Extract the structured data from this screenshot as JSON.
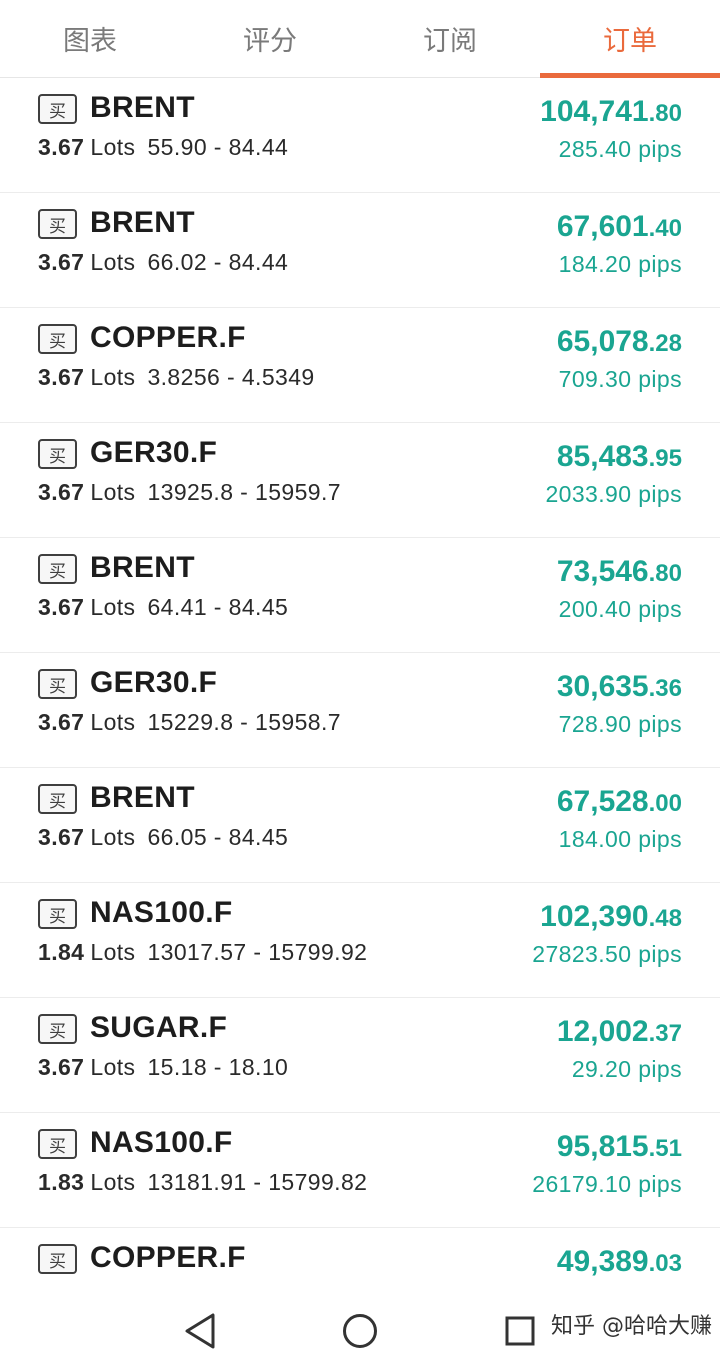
{
  "tabs": [
    {
      "label": "图表",
      "active": false
    },
    {
      "label": "评分",
      "active": false
    },
    {
      "label": "订阅",
      "active": false
    },
    {
      "label": "订单",
      "active": true
    }
  ],
  "colors": {
    "accent": "#ea6a3c",
    "profit": "#1aa591",
    "text": "#1d1d1d"
  },
  "orders": [
    {
      "side": "买",
      "symbol": "BRENT",
      "lots": "3.67",
      "lots_word": "Lots",
      "range": "55.90 - 84.44",
      "profit_int": "104,741",
      "profit_dec": ".80",
      "pips": "285.40 pips"
    },
    {
      "side": "买",
      "symbol": "BRENT",
      "lots": "3.67",
      "lots_word": "Lots",
      "range": "66.02 - 84.44",
      "profit_int": "67,601",
      "profit_dec": ".40",
      "pips": "184.20 pips"
    },
    {
      "side": "买",
      "symbol": "COPPER.F",
      "lots": "3.67",
      "lots_word": "Lots",
      "range": "3.8256 - 4.5349",
      "profit_int": "65,078",
      "profit_dec": ".28",
      "pips": "709.30 pips"
    },
    {
      "side": "买",
      "symbol": "GER30.F",
      "lots": "3.67",
      "lots_word": "Lots",
      "range": "13925.8 - 15959.7",
      "profit_int": "85,483",
      "profit_dec": ".95",
      "pips": "2033.90 pips"
    },
    {
      "side": "买",
      "symbol": "BRENT",
      "lots": "3.67",
      "lots_word": "Lots",
      "range": "64.41 - 84.45",
      "profit_int": "73,546",
      "profit_dec": ".80",
      "pips": "200.40 pips"
    },
    {
      "side": "买",
      "symbol": "GER30.F",
      "lots": "3.67",
      "lots_word": "Lots",
      "range": "15229.8 - 15958.7",
      "profit_int": "30,635",
      "profit_dec": ".36",
      "pips": "728.90 pips"
    },
    {
      "side": "买",
      "symbol": "BRENT",
      "lots": "3.67",
      "lots_word": "Lots",
      "range": "66.05 - 84.45",
      "profit_int": "67,528",
      "profit_dec": ".00",
      "pips": "184.00 pips"
    },
    {
      "side": "买",
      "symbol": "NAS100.F",
      "lots": "1.84",
      "lots_word": "Lots",
      "range": "13017.57 - 15799.92",
      "profit_int": "102,390",
      "profit_dec": ".48",
      "pips": "27823.50 pips"
    },
    {
      "side": "买",
      "symbol": "SUGAR.F",
      "lots": "3.67",
      "lots_word": "Lots",
      "range": "15.18 - 18.10",
      "profit_int": "12,002",
      "profit_dec": ".37",
      "pips": "29.20 pips"
    },
    {
      "side": "买",
      "symbol": "NAS100.F",
      "lots": "1.83",
      "lots_word": "Lots",
      "range": "13181.91 - 15799.82",
      "profit_int": "95,815",
      "profit_dec": ".51",
      "pips": "26179.10 pips"
    },
    {
      "side": "买",
      "symbol": "COPPER.F",
      "lots": "",
      "lots_word": "",
      "range": "",
      "profit_int": "49,389",
      "profit_dec": ".03",
      "pips": ""
    }
  ],
  "navbar": {
    "icons": [
      "back-triangle-icon",
      "home-circle-icon",
      "recents-square-icon"
    ],
    "watermark": "知乎 @哈哈大赚"
  }
}
